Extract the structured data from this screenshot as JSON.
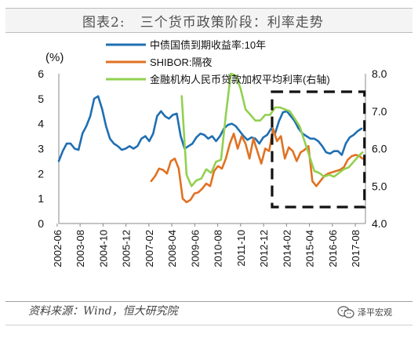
{
  "header": {
    "title": "图表2:   三个货币政策阶段：利率走势"
  },
  "footer": {
    "source": "资料来源：Wind，恒大研究院",
    "brand": "泽平宏观"
  },
  "chart_data": {
    "type": "line",
    "unit_label": "(%)",
    "x_ticks": [
      "2002-06",
      "2003-08",
      "2004-10",
      "2005-12",
      "2007-02",
      "2008-04",
      "2009-06",
      "2010-08",
      "2011-10",
      "2012-12",
      "2014-02",
      "2015-04",
      "2016-06",
      "2017-08"
    ],
    "left_axis": {
      "ylim": [
        0,
        6
      ],
      "ticks": [
        "0",
        "1",
        "2",
        "3",
        "4",
        "5",
        "6"
      ]
    },
    "right_axis": {
      "ylim": [
        4.0,
        8.0
      ],
      "ticks": [
        "4.0",
        "5.0",
        "6.0",
        "7.0",
        "8.0"
      ]
    },
    "series": [
      {
        "name": "中债国债到期收益率:10年",
        "color": "#1f6fb2",
        "axis": "left",
        "x": [
          2002.5,
          2002.7,
          2002.9,
          2003.1,
          2003.3,
          2003.5,
          2003.7,
          2003.9,
          2004.1,
          2004.3,
          2004.5,
          2004.7,
          2004.9,
          2005.1,
          2005.3,
          2005.5,
          2005.7,
          2005.9,
          2006.1,
          2006.3,
          2006.5,
          2006.7,
          2006.9,
          2007.1,
          2007.3,
          2007.5,
          2007.7,
          2007.9,
          2008.1,
          2008.3,
          2008.5,
          2008.7,
          2008.9,
          2009.1,
          2009.3,
          2009.5,
          2009.7,
          2009.9,
          2010.1,
          2010.3,
          2010.5,
          2010.7,
          2010.9,
          2011.1,
          2011.3,
          2011.5,
          2011.7,
          2011.9,
          2012.1,
          2012.3,
          2012.5,
          2012.7,
          2012.9,
          2013.1,
          2013.3,
          2013.5,
          2013.7,
          2013.9,
          2014.1,
          2014.3,
          2014.5,
          2014.7,
          2014.9,
          2015.1,
          2015.3,
          2015.5,
          2015.7,
          2015.9,
          2016.1,
          2016.3,
          2016.5,
          2016.7,
          2016.9,
          2017.1,
          2017.3,
          2017.5,
          2017.7,
          2017.9
        ],
        "values": [
          2.5,
          2.9,
          3.2,
          3.2,
          3.0,
          2.95,
          3.6,
          3.9,
          4.3,
          5.0,
          5.1,
          4.6,
          3.9,
          3.4,
          3.2,
          3.1,
          2.95,
          3.0,
          3.1,
          3.0,
          3.1,
          3.4,
          3.5,
          3.3,
          3.6,
          4.3,
          4.5,
          4.3,
          4.2,
          4.35,
          4.4,
          3.5,
          3.0,
          3.1,
          3.2,
          3.45,
          3.6,
          3.55,
          3.4,
          3.5,
          3.3,
          3.5,
          3.8,
          3.95,
          4.0,
          3.9,
          3.7,
          3.5,
          3.35,
          3.45,
          3.4,
          3.2,
          3.45,
          3.55,
          3.8,
          3.6,
          4.1,
          4.45,
          4.5,
          4.3,
          4.1,
          3.8,
          3.6,
          3.5,
          3.4,
          3.4,
          3.3,
          3.1,
          2.85,
          2.8,
          2.9,
          2.9,
          2.75,
          3.2,
          3.45,
          3.55,
          3.7,
          3.8
        ]
      },
      {
        "name": "SHIBOR:隔夜",
        "color": "#e07222",
        "axis": "left",
        "x": [
          2007.2,
          2007.4,
          2007.6,
          2007.8,
          2008.0,
          2008.2,
          2008.4,
          2008.6,
          2008.8,
          2009.0,
          2009.2,
          2009.4,
          2009.6,
          2009.8,
          2010.0,
          2010.2,
          2010.4,
          2010.6,
          2010.8,
          2011.0,
          2011.2,
          2011.4,
          2011.6,
          2011.8,
          2012.0,
          2012.2,
          2012.4,
          2012.6,
          2012.8,
          2013.0,
          2013.2,
          2013.4,
          2013.6,
          2013.8,
          2014.0,
          2014.2,
          2014.4,
          2014.6,
          2014.8,
          2015.0,
          2015.2,
          2015.4,
          2015.6,
          2015.8,
          2016.0,
          2016.2,
          2016.4,
          2016.6,
          2016.8,
          2017.0,
          2017.2,
          2017.4,
          2017.6,
          2017.8,
          2017.95
        ],
        "values": [
          1.7,
          1.9,
          2.2,
          2.15,
          2.0,
          2.5,
          2.6,
          2.2,
          1.0,
          0.85,
          0.95,
          1.2,
          1.25,
          1.4,
          1.6,
          1.5,
          2.1,
          2.3,
          2.2,
          2.6,
          3.2,
          3.6,
          3.0,
          3.5,
          3.2,
          2.6,
          3.4,
          2.9,
          2.4,
          3.0,
          2.9,
          3.8,
          3.3,
          3.5,
          2.6,
          3.05,
          2.9,
          2.5,
          2.85,
          2.95,
          3.1,
          1.7,
          1.5,
          1.7,
          1.9,
          2.0,
          2.05,
          2.1,
          2.15,
          2.25,
          2.55,
          2.7,
          2.75,
          2.7,
          2.6
        ]
      },
      {
        "name": "金融机构人民币贷款加权平均利率(右轴)",
        "color": "#92d050",
        "axis": "right",
        "x": [
          2008.75,
          2009.0,
          2009.25,
          2009.5,
          2009.75,
          2010.0,
          2010.25,
          2010.5,
          2010.75,
          2011.0,
          2011.25,
          2011.5,
          2011.75,
          2012.0,
          2012.25,
          2012.5,
          2012.75,
          2013.0,
          2013.25,
          2013.5,
          2013.75,
          2014.0,
          2014.25,
          2014.5,
          2014.75,
          2015.0,
          2015.25,
          2015.5,
          2015.75,
          2016.0,
          2016.25,
          2016.5,
          2016.75,
          2017.0,
          2017.25,
          2017.5,
          2017.75,
          2017.95
        ],
        "values": [
          7.4,
          5.3,
          5.0,
          5.15,
          5.2,
          5.45,
          5.35,
          5.65,
          5.7,
          6.9,
          8.0,
          7.95,
          7.6,
          7.05,
          6.9,
          6.75,
          6.75,
          6.9,
          6.9,
          7.1,
          7.1,
          7.05,
          7.0,
          6.8,
          6.6,
          6.2,
          5.8,
          5.4,
          5.35,
          5.25,
          5.3,
          5.25,
          5.35,
          5.45,
          5.5,
          5.65,
          5.8,
          5.9
        ]
      }
    ],
    "annotation": "dashed-box highlighting 2014-02 to 2017-08"
  }
}
